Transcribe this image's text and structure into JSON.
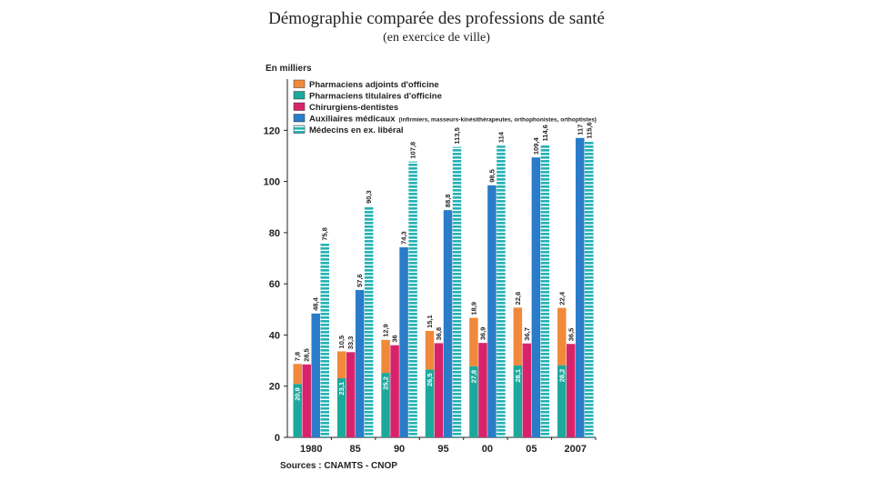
{
  "title": "Démographie comparée des professions de santé",
  "subtitle": "(en exercice de ville)",
  "unit_label": "En milliers",
  "source": "Sources : CNAMTS - CNOP",
  "legend_note": "(infirmiers, masseurs-kinésithérapeutes, orthophonistes, orthoptistes)",
  "colors": {
    "adjoints": "#f08a3a",
    "titulaires": "#1ba99c",
    "dentistes": "#d8236b",
    "auxiliaires": "#2a7cc8",
    "medecins": "#23b2b5"
  },
  "chart_data": {
    "type": "bar",
    "title": "Démographie comparée des professions de santé",
    "subtitle": "(en exercice de ville)",
    "ylabel": "En milliers",
    "ylim": [
      0,
      140
    ],
    "yticks": [
      0,
      20,
      40,
      60,
      80,
      100,
      120
    ],
    "grid": false,
    "legend_position": "top-left",
    "categories": [
      "1980",
      "85",
      "90",
      "95",
      "00",
      "05",
      "2007"
    ],
    "stacked_series": [
      {
        "name": "Pharmaciens titulaires d'officine",
        "key": "titulaires",
        "values": [
          20.9,
          23.1,
          25.2,
          26.5,
          27.8,
          28.1,
          28.2
        ],
        "labels": [
          "20,9",
          "23,1",
          "25,2",
          "26,5",
          "27,8",
          "28,1",
          "28,2"
        ]
      },
      {
        "name": "Pharmaciens adjoints d'officine",
        "key": "adjoints",
        "values": [
          7.8,
          10.5,
          12.9,
          15.1,
          18.9,
          22.6,
          22.4
        ],
        "labels": [
          "7,8",
          "10,5",
          "12,9",
          "15,1",
          "18,9",
          "22,6",
          "22,4"
        ]
      }
    ],
    "series": [
      {
        "name": "Chirurgiens-dentistes",
        "key": "dentistes",
        "values": [
          28.5,
          33.3,
          36,
          36.8,
          36.9,
          36.7,
          36.5
        ],
        "labels": [
          "28,5",
          "33,3",
          "36",
          "36,8",
          "36,9",
          "36,7",
          "36,5"
        ]
      },
      {
        "name": "Auxiliaires médicaux",
        "key": "auxiliaires",
        "values": [
          48.4,
          57.6,
          74.3,
          88.8,
          98.5,
          109.4,
          117
        ],
        "labels": [
          "48,4",
          "57,6",
          "74,3",
          "88,8",
          "98,5",
          "109,4",
          "117"
        ]
      },
      {
        "name": "Médecins en ex. libéral",
        "key": "medecins",
        "values": [
          75.8,
          90.3,
          107.8,
          113.5,
          114,
          114.6,
          115.6
        ],
        "labels": [
          "75,8",
          "90,3",
          "107,8",
          "113,5",
          "114",
          "114,6",
          "115,6"
        ]
      }
    ],
    "legend": [
      {
        "name": "Pharmaciens adjoints d'officine",
        "key": "adjoints"
      },
      {
        "name": "Pharmaciens titulaires d'officine",
        "key": "titulaires"
      },
      {
        "name": "Chirurgiens-dentistes",
        "key": "dentistes"
      },
      {
        "name": "Auxiliaires médicaux",
        "key": "auxiliaires",
        "note": true
      },
      {
        "name": "Médecins en ex. libéral",
        "key": "medecins"
      }
    ]
  }
}
